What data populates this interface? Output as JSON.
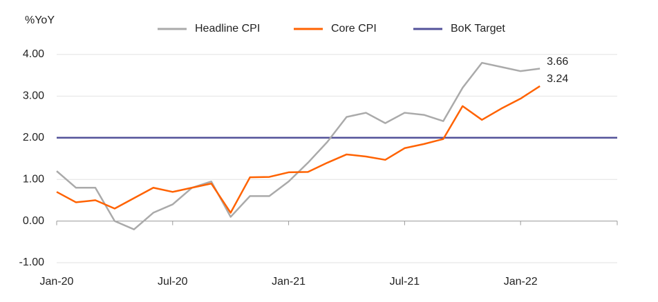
{
  "chart_data": {
    "type": "line",
    "y_label": "%YoY",
    "categories": [
      "Jan-20",
      null,
      null,
      null,
      null,
      null,
      "Jul-20",
      null,
      null,
      null,
      null,
      null,
      "Jan-21",
      null,
      null,
      null,
      null,
      null,
      "Jul-21",
      null,
      null,
      null,
      null,
      null,
      "Jan-22",
      null,
      null,
      null,
      null,
      null
    ],
    "series": [
      {
        "name": "Headline CPI",
        "color": "#aaaaaa",
        "label_last": true,
        "values": [
          1.2,
          0.8,
          0.8,
          0.0,
          -0.2,
          0.2,
          0.4,
          0.8,
          0.95,
          0.1,
          0.6,
          0.6,
          0.95,
          1.4,
          1.9,
          2.5,
          2.6,
          2.35,
          2.6,
          2.55,
          2.4,
          3.2,
          3.8,
          3.7,
          3.6,
          3.66,
          null,
          null,
          null,
          null
        ]
      },
      {
        "name": "Core CPI",
        "color": "#ff6200",
        "label_last": true,
        "values": [
          0.7,
          0.45,
          0.5,
          0.3,
          0.55,
          0.8,
          0.7,
          0.8,
          0.9,
          0.2,
          1.05,
          1.06,
          1.17,
          1.18,
          1.4,
          1.6,
          1.55,
          1.47,
          1.75,
          1.85,
          1.97,
          2.76,
          2.43,
          2.7,
          2.94,
          3.24,
          null,
          null,
          null,
          null
        ]
      },
      {
        "name": "BoK Target",
        "color": "#525199",
        "label_last": false,
        "values": [
          2,
          2,
          2,
          2,
          2,
          2,
          2,
          2,
          2,
          2,
          2,
          2,
          2,
          2,
          2,
          2,
          2,
          2,
          2,
          2,
          2,
          2,
          2,
          2,
          2,
          2,
          2,
          2,
          2,
          2
        ]
      }
    ],
    "ylim": [
      -1,
      4
    ],
    "yticks": [
      {
        "value": -1,
        "label": "-1.00"
      },
      {
        "value": 0,
        "label": "0.00"
      },
      {
        "value": 1,
        "label": "1.00"
      },
      {
        "value": 2,
        "label": "2.00"
      },
      {
        "value": 3,
        "label": "3.00"
      },
      {
        "value": 4,
        "label": "4.00"
      }
    ],
    "grid": true
  }
}
